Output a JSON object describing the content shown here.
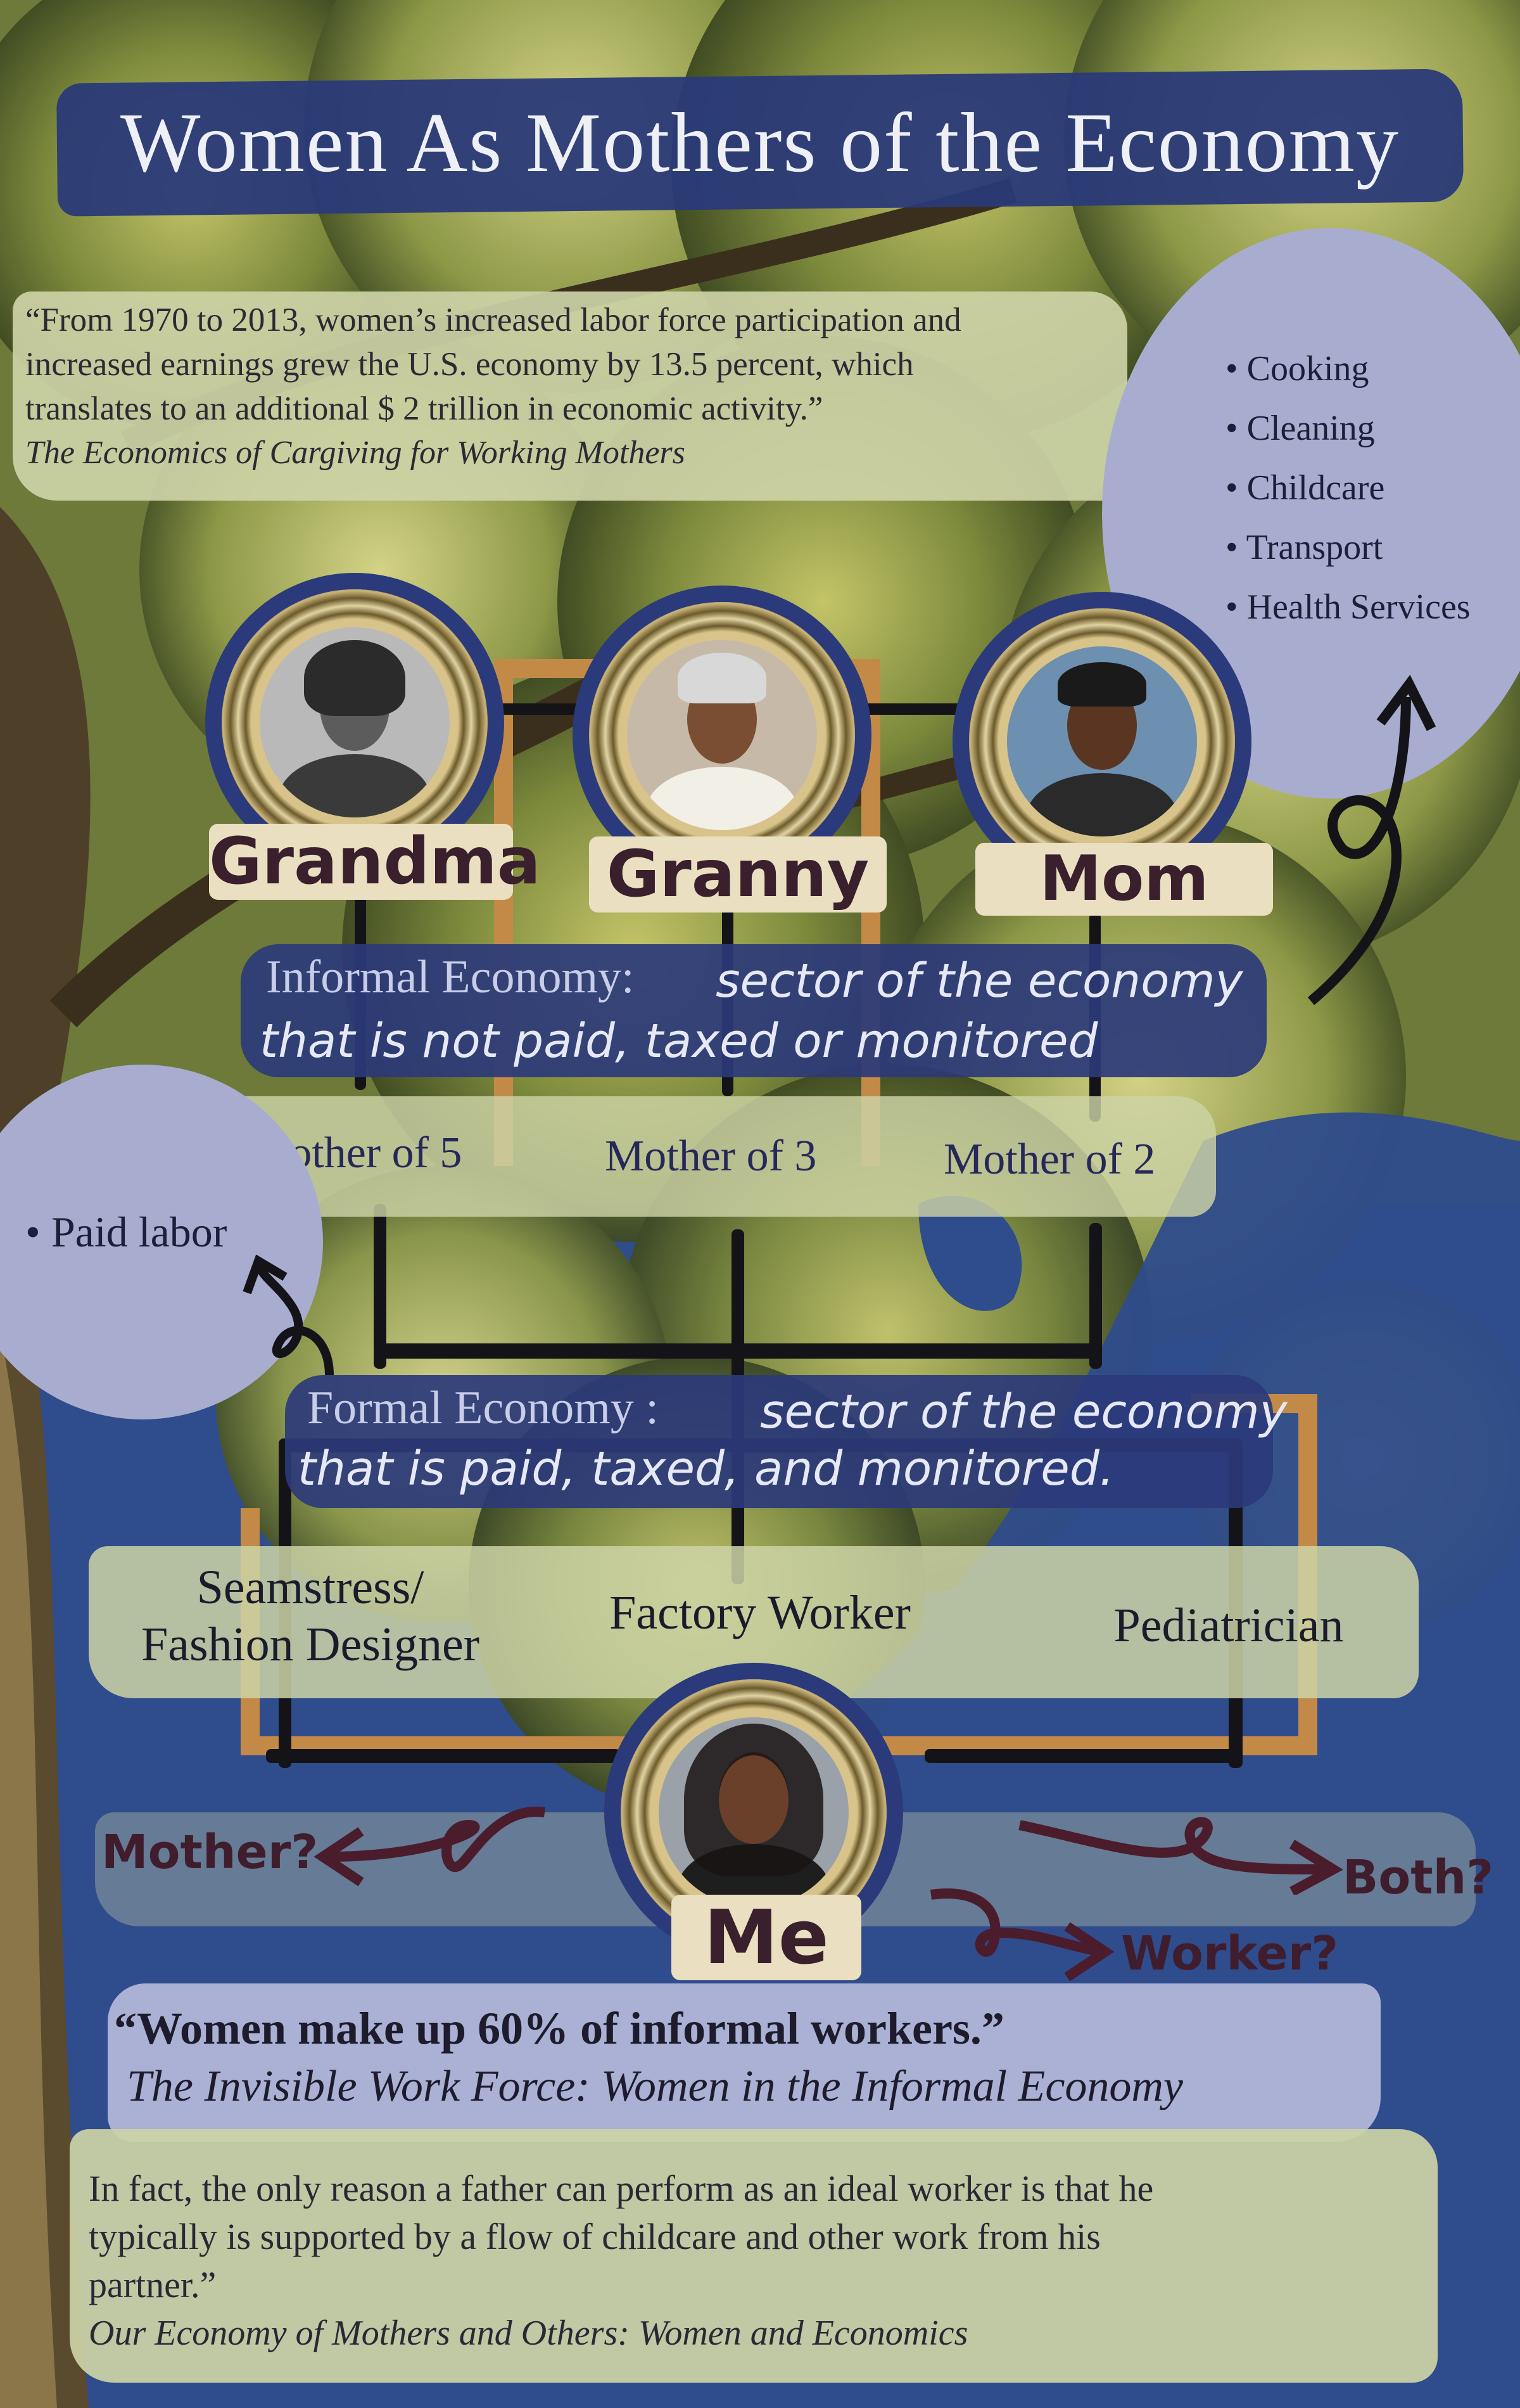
{
  "title": "Women As Mothers of the Economy",
  "quote_top": {
    "line1": "“From 1970 to 2013, women’s increased labor force participation and",
    "line2": "increased earnings grew the U.S. economy by 13.5 percent, which",
    "line3": "translates to an additional $ 2 trillion in economic activity.”",
    "citation": "The Economics of Cargiving for Working Mothers"
  },
  "informal_tasks": [
    "Cooking",
    "Cleaning",
    "Childcare",
    "Transport",
    "Health Services"
  ],
  "formal_tasks": [
    "Paid labor"
  ],
  "people": {
    "grandma": "Grandma",
    "granny": "Granny",
    "mom": "Mom",
    "me": "Me"
  },
  "informal_economy": {
    "label": "Informal Economy:",
    "def_line1": "sector of the economy",
    "def_line2": "that is not paid, taxed or monitored"
  },
  "mothers": {
    "grandma": "Mother of 5",
    "granny": "Mother of 3",
    "mom": "Mother of 2"
  },
  "formal_economy": {
    "label": "Formal Economy :",
    "def_line1": "sector of the economy",
    "def_line2": "that is paid, taxed, and monitored."
  },
  "jobs": {
    "grandma_l1": "Seamstress/",
    "grandma_l2": "Fashion Designer",
    "granny": "Factory Worker",
    "mom": "Pediatrician"
  },
  "choices": {
    "mother": "Mother?",
    "both": "Both?",
    "worker": "Worker?"
  },
  "quote_mid": {
    "text": "“Women make up 60% of informal workers.”",
    "citation": "The Invisible Work Force: Women in the Informal Economy"
  },
  "quote_bottom": {
    "line1": "In fact, the only reason a father can perform as an ideal worker is that he",
    "line2": "typically is supported by a flow of childcare and other work from his",
    "line3": "partner.”",
    "citation": "Our Economy of Mothers and Others: Women and Economics"
  },
  "colors": {
    "navy": "#2b3a7a",
    "sage": "#cdd3a6",
    "lavender": "#a8adcf",
    "name_plate": "#eadfc0"
  }
}
